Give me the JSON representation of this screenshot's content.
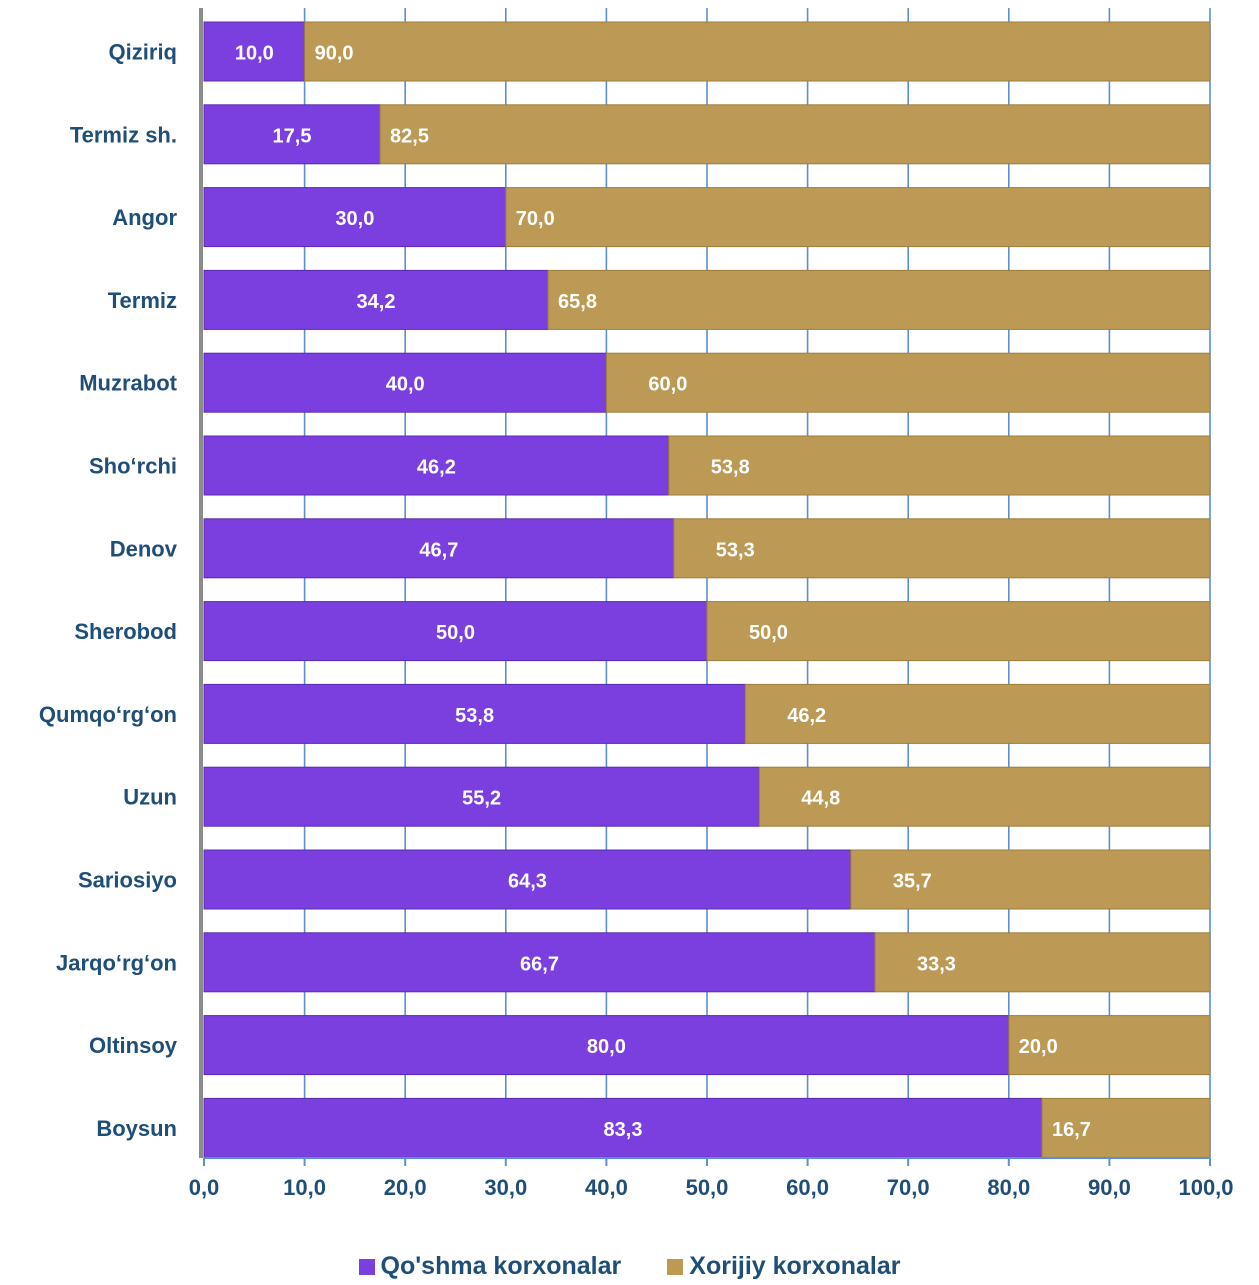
{
  "chart_data": {
    "type": "bar",
    "orientation": "horizontal",
    "stacked": true,
    "categories": [
      "Qiziriq",
      "Termiz sh.",
      "Angor",
      "Termiz",
      "Muzrabot",
      "Sho‘rchi",
      "Denov",
      "Sherobod",
      "Qumqo‘rg‘on",
      "Uzun",
      "Sariosiyo",
      "Jarqo‘rg‘on",
      "Oltinsoy",
      "Boysun"
    ],
    "series": [
      {
        "name": "Qo'shma korxonalar",
        "color": "#7b3fe0",
        "values": [
          10.0,
          17.5,
          30.0,
          34.2,
          40.0,
          46.2,
          46.7,
          50.0,
          53.8,
          55.2,
          64.3,
          66.7,
          80.0,
          83.3
        ],
        "labels": [
          "10,0",
          "17,5",
          "30,0",
          "34,2",
          "40,0",
          "46,2",
          "46,7",
          "50,0",
          "53,8",
          "55,2",
          "64,3",
          "66,7",
          "80,0",
          "83,3"
        ]
      },
      {
        "name": "Xorijiy korxonalar",
        "color": "#bc9a55",
        "values": [
          90.0,
          82.5,
          70.0,
          65.8,
          60.0,
          53.8,
          53.3,
          50.0,
          46.2,
          44.8,
          35.7,
          33.3,
          20.0,
          16.7
        ],
        "labels": [
          "90,0",
          "82,5",
          "70,0",
          "65,8",
          "60,0",
          "53,8",
          "53,3",
          "50,0",
          "46,2",
          "44,8",
          "35,7",
          "33,3",
          "20,0",
          "16,7"
        ]
      }
    ],
    "xlim": [
      0,
      100
    ],
    "xticks": [
      0,
      10,
      20,
      30,
      40,
      50,
      60,
      70,
      80,
      90,
      100
    ],
    "xtick_labels": [
      "0,0",
      "10,0",
      "20,0",
      "30,0",
      "40,0",
      "50,0",
      "60,0",
      "70,0",
      "80,0",
      "90,0",
      "100,0"
    ],
    "grid": true,
    "legend_position": "bottom"
  }
}
